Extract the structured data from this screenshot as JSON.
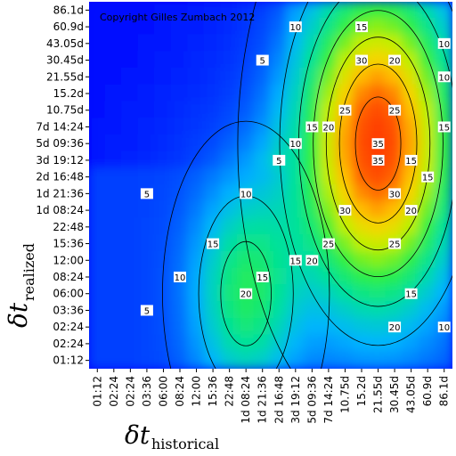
{
  "chart_data": {
    "type": "heatmap",
    "copyright": "Copyright Gilles Zumbach 2012",
    "xlabel": {
      "symbol": "δt",
      "subscript": "historical"
    },
    "ylabel": {
      "symbol": "δt",
      "subscript": "realized"
    },
    "xticks": [
      "01:12",
      "02:24",
      "02:24",
      "03:36",
      "06:00",
      "08:24",
      "12:00",
      "15:36",
      "22:48",
      "1d 08:24",
      "1d 21:36",
      "2d 16:48",
      "3d 19:12",
      "5d 09:36",
      "7d 14:24",
      "10.75d",
      "15.2d",
      "21.55d",
      "30.45d",
      "43.05d",
      "60.9d",
      "86.1d"
    ],
    "yticks": [
      "86.1d",
      "60.9d",
      "43.05d",
      "30.45d",
      "21.55d",
      "15.2d",
      "10.75d",
      "7d 14:24",
      "5d 09:36",
      "3d 19:12",
      "2d 16:48",
      "1d 21:36",
      "1d 08:24",
      "22:48",
      "15:36",
      "12:00",
      "08:24",
      "06:00",
      "03:36",
      "02:24",
      "02:24",
      "01:12"
    ],
    "colorscale": [
      "#0000ff",
      "#0050ff",
      "#00b4ff",
      "#00e0a0",
      "#30f040",
      "#c0f000",
      "#ffd000",
      "#ff6000",
      "#ff2000"
    ],
    "value_range": [
      0,
      40
    ],
    "contour_levels": [
      5,
      10,
      15,
      20,
      25,
      30,
      35
    ],
    "peaks": [
      {
        "x": "21.55d",
        "y": "5d 09:36",
        "value": 38
      },
      {
        "x": "1d 08:24",
        "y": "06:00",
        "value": 22
      }
    ],
    "contour_labels": [
      {
        "text": "10",
        "x": "3d 19:12",
        "y": "60.9d"
      },
      {
        "text": "5",
        "x": "1d 21:36",
        "y": "30.45d"
      },
      {
        "text": "15",
        "x": "15.2d",
        "y": "60.9d"
      },
      {
        "text": "30",
        "x": "15.2d",
        "y": "30.45d"
      },
      {
        "text": "20",
        "x": "30.45d",
        "y": "30.45d"
      },
      {
        "text": "25",
        "x": "10.75d",
        "y": "10.75d"
      },
      {
        "text": "25",
        "x": "30.45d",
        "y": "10.75d"
      },
      {
        "text": "20",
        "x": "7d 14:24",
        "y": "7d 14:24"
      },
      {
        "text": "15",
        "x": "5d 09:36",
        "y": "7d 14:24"
      },
      {
        "text": "10",
        "x": "3d 19:12",
        "y": "5d 09:36"
      },
      {
        "text": "35",
        "x": "21.55d",
        "y": "5d 09:36"
      },
      {
        "text": "35",
        "x": "21.55d",
        "y": "3d 19:12"
      },
      {
        "text": "5",
        "x": "2d 16:48",
        "y": "3d 19:12"
      },
      {
        "text": "10",
        "x": "1d 08:24",
        "y": "1d 21:36"
      },
      {
        "text": "5",
        "x": "03:36",
        "y": "1d 21:36"
      },
      {
        "text": "30",
        "x": "10.75d",
        "y": "1d 08:24"
      },
      {
        "text": "30",
        "x": "30.45d",
        "y": "1d 21:36"
      },
      {
        "text": "20",
        "x": "43.05d",
        "y": "1d 08:24"
      },
      {
        "text": "15",
        "x": "43.05d",
        "y": "3d 19:12"
      },
      {
        "text": "15",
        "x": "60.9d",
        "y": "2d 16:48"
      },
      {
        "text": "15",
        "x": "86.1d",
        "y": "7d 14:24"
      },
      {
        "text": "10",
        "x": "86.1d",
        "y": "43.05d"
      },
      {
        "text": "10",
        "x": "86.1d",
        "y": "21.55d"
      },
      {
        "text": "25",
        "x": "7d 14:24",
        "y": "15:36"
      },
      {
        "text": "25",
        "x": "30.45d",
        "y": "15:36"
      },
      {
        "text": "15",
        "x": "15:36",
        "y": "15:36"
      },
      {
        "text": "20",
        "x": "5d 09:36",
        "y": "12:00"
      },
      {
        "text": "15",
        "x": "3d 19:12",
        "y": "12:00"
      },
      {
        "text": "15",
        "x": "1d 21:36",
        "y": "08:24"
      },
      {
        "text": "20",
        "x": "1d 08:24",
        "y": "06:00"
      },
      {
        "text": "10",
        "x": "08:24",
        "y": "08:24"
      },
      {
        "text": "15",
        "x": "43.05d",
        "y": "06:00"
      },
      {
        "text": "5",
        "x": "03:36",
        "y": "03:36"
      },
      {
        "text": "20",
        "x": "30.45d",
        "y": "02:24"
      },
      {
        "text": "10",
        "x": "86.1d",
        "y": "02:24"
      }
    ]
  }
}
